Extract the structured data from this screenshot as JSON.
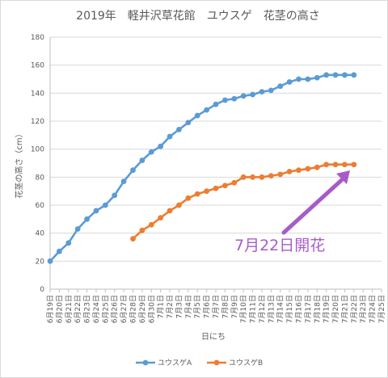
{
  "chart_data": {
    "type": "line",
    "title": "2019年　軽井沢草花館　ユウスゲ　花茎の高さ",
    "xlabel": "日にち",
    "ylabel": "花茎の高さ（cm）",
    "ylim": [
      0,
      180
    ],
    "yticks": [
      0,
      20,
      40,
      60,
      80,
      100,
      120,
      140,
      160,
      180
    ],
    "grid": true,
    "legend_position": "bottom",
    "categories": [
      "6月19日",
      "6月20日",
      "6月21日",
      "6月22日",
      "6月23日",
      "6月24日",
      "6月25日",
      "6月26日",
      "6月27日",
      "6月28日",
      "6月29日",
      "6月30日",
      "7月1日",
      "7月2日",
      "7月3日",
      "7月4日",
      "7月5日",
      "7月6日",
      "7月7日",
      "7月8日",
      "7月9日",
      "7月10日",
      "7月11日",
      "7月12日",
      "7月13日",
      "7月14日",
      "7月15日",
      "7月16日",
      "7月17日",
      "7月18日",
      "7月19日",
      "7月20日",
      "7月21日",
      "7月22日",
      "7月23日",
      "7月24日",
      "7月25日"
    ],
    "series": [
      {
        "name": "ユウスゲA",
        "color": "#5b9bd5",
        "values": [
          20,
          27,
          33,
          43,
          50,
          56,
          60,
          67,
          77,
          85,
          92,
          98,
          102,
          109,
          114,
          119,
          124,
          128,
          132,
          135,
          136,
          138,
          139,
          141,
          142,
          145,
          148,
          150,
          150,
          151,
          153,
          153,
          153,
          153,
          null,
          null,
          null
        ]
      },
      {
        "name": "ユウスゲB",
        "color": "#ed7d31",
        "values": [
          null,
          null,
          null,
          null,
          null,
          null,
          null,
          null,
          null,
          36,
          42,
          46,
          51,
          56,
          60,
          65,
          68,
          70,
          72,
          74,
          76,
          80,
          80,
          80,
          81,
          82,
          84,
          85,
          86,
          87,
          89,
          89,
          89,
          89,
          null,
          null,
          null
        ]
      }
    ],
    "annotation": {
      "text": "7月22日開花",
      "color": "#a85bc8"
    }
  }
}
